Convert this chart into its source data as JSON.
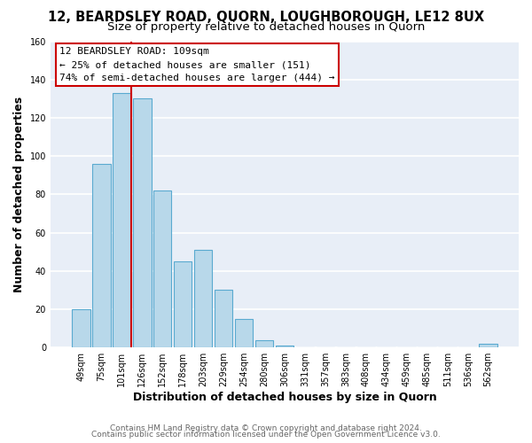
{
  "title": "12, BEARDSLEY ROAD, QUORN, LOUGHBOROUGH, LE12 8UX",
  "subtitle": "Size of property relative to detached houses in Quorn",
  "xlabel": "Distribution of detached houses by size in Quorn",
  "ylabel": "Number of detached properties",
  "bar_labels": [
    "49sqm",
    "75sqm",
    "101sqm",
    "126sqm",
    "152sqm",
    "178sqm",
    "203sqm",
    "229sqm",
    "254sqm",
    "280sqm",
    "306sqm",
    "331sqm",
    "357sqm",
    "383sqm",
    "408sqm",
    "434sqm",
    "459sqm",
    "485sqm",
    "511sqm",
    "536sqm",
    "562sqm"
  ],
  "bar_values": [
    20,
    96,
    133,
    130,
    82,
    45,
    51,
    30,
    15,
    4,
    1,
    0,
    0,
    0,
    0,
    0,
    0,
    0,
    0,
    0,
    2
  ],
  "bar_color": "#b8d8ea",
  "bar_edge_color": "#5aaad0",
  "vline_x_idx": 2,
  "vline_color": "#cc0000",
  "annotation_text_line1": "12 BEARDSLEY ROAD: 109sqm",
  "annotation_text_line2": "← 25% of detached houses are smaller (151)",
  "annotation_text_line3": "74% of semi-detached houses are larger (444) →",
  "annotation_box_edge_color": "#cc0000",
  "annotation_box_face_color": "#ffffff",
  "ylim": [
    0,
    160
  ],
  "yticks": [
    0,
    20,
    40,
    60,
    80,
    100,
    120,
    140,
    160
  ],
  "footer_line1": "Contains HM Land Registry data © Crown copyright and database right 2024.",
  "footer_line2": "Contains public sector information licensed under the Open Government Licence v3.0.",
  "fig_bg_color": "#ffffff",
  "plot_bg_color": "#e8eef7",
  "grid_color": "#ffffff",
  "title_fontsize": 10.5,
  "subtitle_fontsize": 9.5,
  "axis_label_fontsize": 9,
  "tick_fontsize": 7,
  "footer_fontsize": 6.5,
  "annotation_fontsize": 8
}
